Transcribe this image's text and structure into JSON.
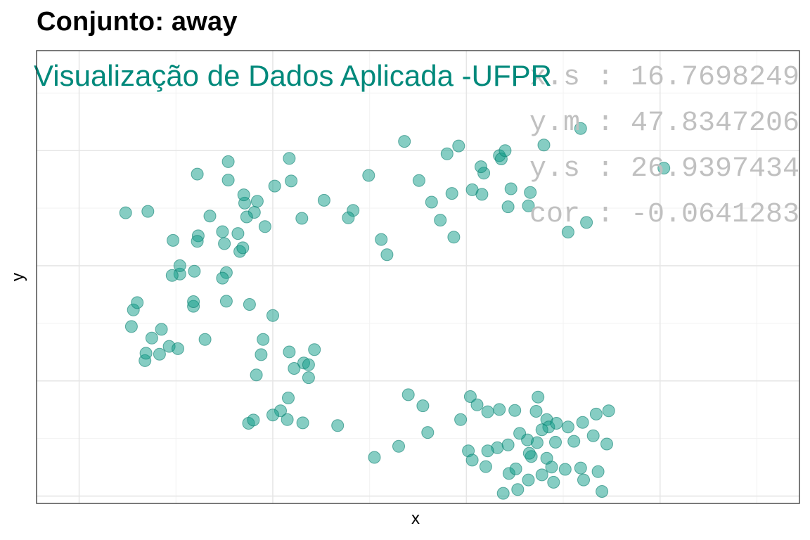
{
  "chart_data": {
    "type": "scatter",
    "title": "Conjunto: away",
    "xlabel": "x",
    "ylabel": "y",
    "watermark": "Visualização de Dados Aplicada -UFPR",
    "stats": [
      "x.s : 16.7698249",
      "y.m : 47.8347206",
      "y.s : 26.9397434",
      "cor : -0.0641283"
    ],
    "xlim": [
      15.6,
      94.4
    ],
    "ylim": [
      -1.6,
      96.7
    ],
    "grid": true,
    "point_color": "#0E9C88",
    "watermark_color": "#00897B",
    "stats_color": "#C0C0C0",
    "points": [
      [
        24.8,
        61.5
      ],
      [
        35.4,
        72.6
      ],
      [
        53.6,
        77.0
      ],
      [
        32.2,
        69.9
      ],
      [
        33.5,
        60.8
      ],
      [
        29.7,
        55.5
      ],
      [
        37.1,
        63.6
      ],
      [
        30.4,
        48.2
      ],
      [
        36.6,
        53.1
      ],
      [
        41.9,
        68.4
      ],
      [
        41.7,
        73.3
      ],
      [
        40.2,
        67.3
      ],
      [
        29.6,
        47.9
      ],
      [
        27.1,
        61.8
      ],
      [
        30.4,
        50.0
      ],
      [
        25.6,
        40.4
      ],
      [
        35.0,
        54.8
      ],
      [
        26.0,
        42.0
      ],
      [
        31.9,
        48.8
      ],
      [
        32.3,
        56.5
      ],
      [
        35.2,
        48.5
      ],
      [
        36.4,
        57.0
      ],
      [
        37.0,
        65.4
      ],
      [
        38.1,
        61.6
      ],
      [
        35.4,
        68.6
      ],
      [
        36.9,
        53.9
      ],
      [
        43.0,
        60.3
      ],
      [
        48.3,
        62.0
      ],
      [
        45.3,
        64.2
      ],
      [
        49.9,
        69.6
      ],
      [
        51.2,
        55.7
      ],
      [
        47.8,
        60.4
      ],
      [
        51.8,
        52.4
      ],
      [
        55.1,
        68.5
      ],
      [
        56.4,
        63.8
      ],
      [
        58.5,
        65.7
      ],
      [
        60.6,
        66.5
      ],
      [
        59.2,
        76.0
      ],
      [
        58.0,
        74.3
      ],
      [
        63.4,
        73.9
      ],
      [
        61.6,
        65.5
      ],
      [
        61.8,
        70.1
      ],
      [
        57.3,
        59.9
      ],
      [
        58.7,
        56.2
      ],
      [
        61.5,
        71.5
      ],
      [
        63.6,
        73.2
      ],
      [
        64.0,
        75.0
      ],
      [
        66.4,
        63.0
      ],
      [
        64.3,
        62.8
      ],
      [
        64.6,
        66.7
      ],
      [
        66.6,
        65.9
      ],
      [
        70.5,
        57.3
      ],
      [
        72.4,
        59.4
      ],
      [
        68.0,
        76.2
      ],
      [
        71.8,
        79.8
      ],
      [
        80.4,
        71.2
      ],
      [
        32.2,
        55.3
      ],
      [
        37.3,
        60.6
      ],
      [
        38.4,
        64.0
      ],
      [
        39.2,
        58.5
      ],
      [
        34.8,
        57.4
      ],
      [
        34.8,
        47.3
      ],
      [
        31.8,
        41.2
      ],
      [
        31.8,
        42.2
      ],
      [
        29.3,
        32.5
      ],
      [
        28.5,
        36.2
      ],
      [
        25.4,
        36.8
      ],
      [
        27.5,
        34.3
      ],
      [
        26.8,
        29.4
      ],
      [
        26.9,
        31.0
      ],
      [
        28.3,
        30.8
      ],
      [
        30.2,
        32.0
      ],
      [
        33.0,
        34.0
      ],
      [
        35.2,
        42.3
      ],
      [
        37.6,
        41.6
      ],
      [
        40.0,
        39.2
      ],
      [
        39.0,
        34.0
      ],
      [
        38.8,
        30.7
      ],
      [
        38.3,
        26.3
      ],
      [
        41.7,
        31.3
      ],
      [
        42.2,
        27.7
      ],
      [
        43.2,
        28.9
      ],
      [
        43.7,
        25.7
      ],
      [
        44.3,
        31.8
      ],
      [
        43.7,
        28.5
      ],
      [
        41.6,
        21.3
      ],
      [
        37.5,
        15.8
      ],
      [
        38.0,
        16.5
      ],
      [
        40.8,
        18.5
      ],
      [
        40.0,
        17.6
      ],
      [
        41.5,
        16.6
      ],
      [
        43.1,
        15.9
      ],
      [
        46.7,
        15.3
      ],
      [
        50.5,
        8.4
      ],
      [
        53.0,
        10.8
      ],
      [
        56.0,
        13.8
      ],
      [
        54.0,
        22.0
      ],
      [
        55.5,
        19.6
      ],
      [
        60.2,
        9.8
      ],
      [
        59.4,
        16.6
      ],
      [
        60.4,
        21.6
      ],
      [
        61.1,
        19.8
      ],
      [
        62.2,
        18.3
      ],
      [
        63.4,
        18.8
      ],
      [
        65.0,
        18.6
      ],
      [
        67.2,
        18.4
      ],
      [
        67.4,
        21.5
      ],
      [
        68.3,
        16.6
      ],
      [
        68.5,
        15.0
      ],
      [
        69.3,
        15.8
      ],
      [
        70.5,
        15.0
      ],
      [
        72.0,
        16.0
      ],
      [
        73.4,
        17.8
      ],
      [
        74.7,
        18.5
      ],
      [
        67.8,
        14.4
      ],
      [
        66.7,
        8.6
      ],
      [
        63.2,
        10.5
      ],
      [
        60.6,
        7.8
      ],
      [
        62.0,
        6.4
      ],
      [
        64.4,
        4.9
      ],
      [
        65.1,
        5.9
      ],
      [
        66.5,
        9.3
      ],
      [
        67.8,
        4.6
      ],
      [
        69.0,
        3.0
      ],
      [
        66.4,
        3.5
      ],
      [
        65.3,
        1.4
      ],
      [
        63.8,
        0.6
      ],
      [
        68.8,
        6.3
      ],
      [
        70.2,
        5.8
      ],
      [
        71.8,
        6.1
      ],
      [
        73.6,
        5.3
      ],
      [
        72.1,
        3.5
      ],
      [
        74.0,
        1.0
      ],
      [
        68.3,
        8.2
      ],
      [
        66.3,
        12.2
      ],
      [
        69.2,
        11.7
      ],
      [
        71.1,
        11.9
      ],
      [
        73.1,
        13.1
      ],
      [
        74.5,
        11.3
      ],
      [
        65.5,
        13.6
      ],
      [
        67.3,
        11.6
      ],
      [
        64.3,
        11.1
      ],
      [
        62.2,
        9.8
      ]
    ]
  }
}
